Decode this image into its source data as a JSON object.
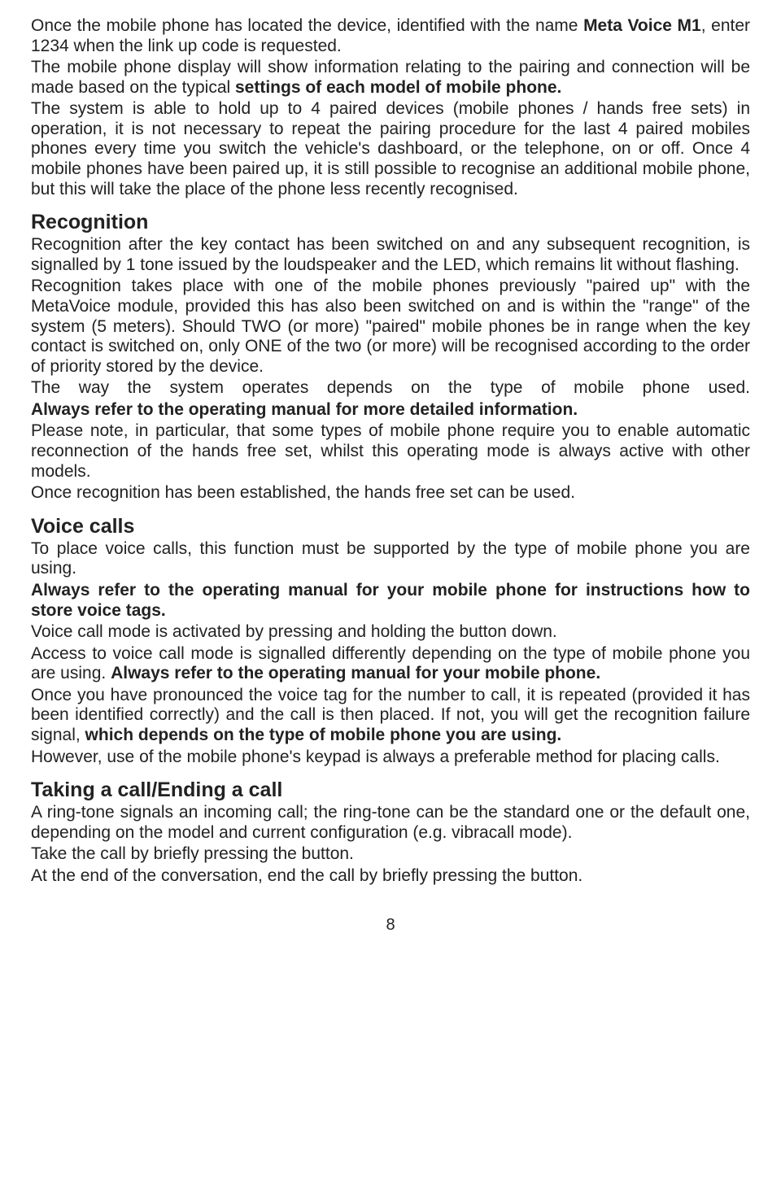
{
  "intro": {
    "p1_a": "Once the mobile phone has located the device, identified with the name ",
    "p1_bold": "Meta Voice M1",
    "p1_b": ", enter 1234 when the link up code is requested.",
    "p2_a": "The mobile phone display will show information relating to the pairing and connection will be made based on the typical ",
    "p2_bold": "settings of each model of mobile phone.",
    "p3": "The system is able to hold up to 4 paired devices (mobile phones / hands free sets) in operation, it is not necessary to repeat the pairing procedure for the last 4 paired mobiles phones every time you switch the vehicle's dashboard, or the telephone, on or off. Once 4 mobile phones have been paired up, it is still possible to recognise an additional mobile phone, but this will take the place of the phone less recently recognised."
  },
  "recognition": {
    "heading": "Recognition",
    "p1": "Recognition after the key contact has been switched on and any subsequent recognition, is signalled by 1 tone issued by the loudspeaker and the LED, which remains lit without flashing.",
    "p2": "Recognition takes place with one of the mobile phones previously \"paired up\" with the MetaVoice module, provided this has also been switched on and is within the \"range\" of the system (5 meters). Should TWO (or more) \"paired\" mobile phones be in range when the key contact is switched on, only ONE of the two (or more) will be recognised according to the order of priority stored by the device.",
    "p3": "The way the system operates depends on the type of mobile phone used.",
    "p3_bold": "Always refer to the operating manual for more detailed information.",
    "p4": "Please note, in particular, that some types of mobile phone require you to enable automatic reconnection of the hands free set, whilst this operating mode is always active with other models.",
    "p5": "Once recognition has been established, the hands free set can be used."
  },
  "voice_calls": {
    "heading": "Voice calls",
    "p1": "To place voice calls, this function must be supported by the type of mobile phone you are using.",
    "p2_bold": "Always refer to the operating manual for your mobile phone for instructions how to store voice tags.",
    "p3": "Voice call mode is activated by pressing and holding the button down.",
    "p4_a": "Access to voice call mode is signalled differently depending on the type of mobile phone you are using. ",
    "p4_bold": "Always refer to the operating manual for your mobile phone.",
    "p5_a": "Once you have pronounced the voice tag for the number to call, it is repeated (provided it has been identified correctly) and the call is then placed. If not, you will get the recognition failure signal, ",
    "p5_bold": "which depends on the type of mobile phone you are using.",
    "p6": "However, use of the mobile phone's keypad is always a preferable method for placing calls."
  },
  "taking_call": {
    "heading": "Taking a call/Ending a call",
    "p1": "A ring-tone signals an incoming call; the ring-tone can be the standard one or the default one, depending on the model and current configuration (e.g. vibracall mode).",
    "p2": "Take the call by briefly pressing the button.",
    "p3": "At the end of the conversation, end the call by briefly pressing the button."
  },
  "page_number": "8"
}
